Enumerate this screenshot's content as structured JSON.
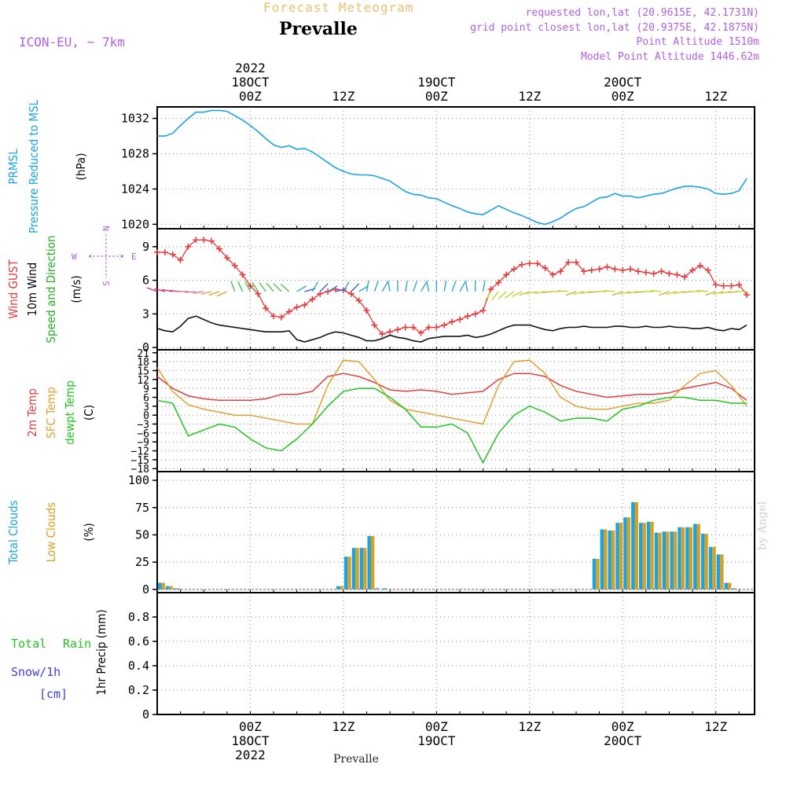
{
  "header": {
    "title": "Forecast Meteogram",
    "location": "Prevalle",
    "model": "ICON-EU, ~ 7km",
    "requested": "requested lon,lat (20.9615E, 42.1731N)",
    "grid": "grid point closest lon,lat (20.9375E, 42.1875N)",
    "point_alt": "Point Altitude 1510m",
    "model_alt": "Model Point Altitude 1446.62m",
    "credit": "by Angel",
    "footer": "Prevalle"
  },
  "time_axis": {
    "top_labels": [
      {
        "t": 12,
        "lines": [
          "2022",
          "18OCT",
          "00Z"
        ]
      },
      {
        "t": 24,
        "lines": [
          "12Z"
        ]
      },
      {
        "t": 36,
        "lines": [
          "19OCT",
          "00Z"
        ]
      },
      {
        "t": 48,
        "lines": [
          "12Z"
        ]
      },
      {
        "t": 60,
        "lines": [
          "20OCT",
          "00Z"
        ]
      },
      {
        "t": 72,
        "lines": [
          "12Z"
        ]
      }
    ],
    "bottom_labels": [
      {
        "t": 12,
        "lines": [
          "00Z",
          "18OCT",
          "2022"
        ]
      },
      {
        "t": 24,
        "lines": [
          "12Z"
        ]
      },
      {
        "t": 36,
        "lines": [
          "00Z",
          "19OCT"
        ]
      },
      {
        "t": 48,
        "lines": [
          "12Z"
        ]
      },
      {
        "t": 60,
        "lines": [
          "00Z",
          "20OCT"
        ]
      },
      {
        "t": 72,
        "lines": [
          "12Z"
        ]
      }
    ]
  },
  "panels": {
    "pressure": {
      "label_lines": [
        "PRMSL",
        "Pressure Reduced to MSL"
      ],
      "unit": "(hPa)"
    },
    "wind": {
      "label_lines": [
        "Wind GUST",
        "10m Wind",
        "Speed and Direction"
      ],
      "unit": "(m/s)",
      "compass": {
        "n": "N",
        "s": "S",
        "w": "W",
        "e": "E"
      }
    },
    "temp": {
      "label_lines": [
        "2m Temp",
        "SFC Temp",
        "dewpt Temp"
      ],
      "unit": "(C)"
    },
    "clouds": {
      "label_lines": [
        "Total Clouds",
        "Low Clouds"
      ],
      "unit": "(%)"
    },
    "precip": {
      "label_total": "Total",
      "label_rain": "Rain",
      "label_snow": "Snow/1h",
      "label_cm": "[cm]",
      "unit": "1hr Precip (mm)"
    }
  },
  "colors": {
    "pressure": "#1aa3e0",
    "gust": "#e63838",
    "wind": "#111111",
    "t2m": "#e04040",
    "tsfc": "#e0a030",
    "dewpt": "#22c422",
    "total_clouds": "#1aa3e0",
    "low_clouds": "#d8a020",
    "snow": "#4040e0",
    "model": "#b060e0"
  },
  "chart_data": [
    {
      "type": "line",
      "title": "PRMSL",
      "ylabel": "(hPa)",
      "ylim": [
        1019.5,
        1033.3
      ],
      "yticks": [
        1020,
        1024,
        1028,
        1032
      ],
      "x": [
        0,
        1,
        2,
        3,
        4,
        5,
        6,
        7,
        8,
        9,
        10,
        11,
        12,
        13,
        14,
        15,
        16,
        17,
        18,
        19,
        20,
        21,
        22,
        23,
        24,
        25,
        26,
        27,
        28,
        29,
        30,
        31,
        32,
        33,
        34,
        35,
        36,
        37,
        38,
        39,
        40,
        41,
        42,
        43,
        44,
        45,
        46,
        47,
        48,
        49,
        50,
        51,
        52,
        53,
        54,
        55,
        56,
        57,
        58,
        59,
        60,
        61,
        62,
        63,
        64,
        65,
        66,
        67,
        68,
        69,
        70,
        71,
        72,
        73,
        74,
        75,
        76
      ],
      "series": [
        {
          "values": [
            1030.0,
            1030.0,
            1030.3,
            1031.2,
            1032.0,
            1032.7,
            1032.7,
            1032.9,
            1032.9,
            1032.8,
            1032.3,
            1031.8,
            1031.2,
            1030.5,
            1029.7,
            1029.0,
            1028.7,
            1028.9,
            1028.5,
            1028.6,
            1028.2,
            1027.6,
            1027.0,
            1026.4,
            1026.0,
            1025.7,
            1025.6,
            1025.6,
            1025.5,
            1025.2,
            1024.9,
            1024.3,
            1023.7,
            1023.4,
            1023.3,
            1023.0,
            1022.9,
            1022.5,
            1022.1,
            1021.8,
            1021.4,
            1021.2,
            1021.1,
            1021.6,
            1022.1,
            1021.7,
            1021.3,
            1021.0,
            1020.6,
            1020.2,
            1020.0,
            1020.3,
            1020.7,
            1021.3,
            1021.8,
            1022.0,
            1022.5,
            1023.0,
            1023.1,
            1023.5,
            1023.2,
            1023.2,
            1023.0,
            1023.2,
            1023.4,
            1023.5,
            1023.8,
            1024.1,
            1024.3,
            1024.3,
            1024.2,
            1024.0,
            1023.5,
            1023.4,
            1023.5,
            1023.8,
            1025.2
          ]
        }
      ]
    },
    {
      "type": "line",
      "title": "Wind",
      "ylabel": "(m/s)",
      "ylim": [
        -0.2,
        10.6
      ],
      "yticks": [
        0,
        3,
        6,
        9
      ],
      "x": [
        0,
        1,
        2,
        3,
        4,
        5,
        6,
        7,
        8,
        9,
        10,
        11,
        12,
        13,
        14,
        15,
        16,
        17,
        18,
        19,
        20,
        21,
        22,
        23,
        24,
        25,
        26,
        27,
        28,
        29,
        30,
        31,
        32,
        33,
        34,
        35,
        36,
        37,
        38,
        39,
        40,
        41,
        42,
        43,
        44,
        45,
        46,
        47,
        48,
        49,
        50,
        51,
        52,
        53,
        54,
        55,
        56,
        57,
        58,
        59,
        60,
        61,
        62,
        63,
        64,
        65,
        66,
        67,
        68,
        69,
        70,
        71,
        72,
        73,
        74,
        75,
        76
      ],
      "series": [
        {
          "name": "Wind GUST",
          "values": [
            8.5,
            8.5,
            8.3,
            7.8,
            9.0,
            9.6,
            9.6,
            9.5,
            8.8,
            8.0,
            7.3,
            6.5,
            5.5,
            4.8,
            3.5,
            2.8,
            2.7,
            3.2,
            3.6,
            3.8,
            4.3,
            4.8,
            5.0,
            5.2,
            5.1,
            4.8,
            4.2,
            3.3,
            2.0,
            1.2,
            1.4,
            1.6,
            1.8,
            1.8,
            1.3,
            1.8,
            1.8,
            2.0,
            2.3,
            2.5,
            2.8,
            3.0,
            3.3,
            5.2,
            5.8,
            6.5,
            7.0,
            7.4,
            7.5,
            7.5,
            7.1,
            6.5,
            6.8,
            7.6,
            7.6,
            6.8,
            6.9,
            7.0,
            7.2,
            7.0,
            6.9,
            7.0,
            6.8,
            6.7,
            6.6,
            6.8,
            6.6,
            6.5,
            6.3,
            6.9,
            7.3,
            6.9,
            5.6,
            5.5,
            5.5,
            5.6,
            4.7
          ]
        },
        {
          "name": "10m Wind",
          "values": [
            1.7,
            1.5,
            1.4,
            1.9,
            2.6,
            2.8,
            2.5,
            2.2,
            2.0,
            1.9,
            1.8,
            1.7,
            1.6,
            1.5,
            1.4,
            1.4,
            1.4,
            1.5,
            0.7,
            0.5,
            0.7,
            0.9,
            1.2,
            1.4,
            1.3,
            1.1,
            0.9,
            0.6,
            0.6,
            0.8,
            1.1,
            0.9,
            0.8,
            0.6,
            0.5,
            0.8,
            0.9,
            1.0,
            1.0,
            1.0,
            1.1,
            0.9,
            1.0,
            1.2,
            1.5,
            1.8,
            2.0,
            2.0,
            2.0,
            1.8,
            1.6,
            1.5,
            1.7,
            1.8,
            1.8,
            1.9,
            1.8,
            1.8,
            1.8,
            1.9,
            1.9,
            1.8,
            1.8,
            1.9,
            1.8,
            1.8,
            1.9,
            1.8,
            1.8,
            1.7,
            1.7,
            1.8,
            1.6,
            1.5,
            1.7,
            1.6,
            2.0
          ]
        }
      ]
    },
    {
      "type": "line",
      "title": "Temperature",
      "ylabel": "(C)",
      "ylim": [
        -19,
        22
      ],
      "yticks": [
        -18,
        -15,
        -12,
        -9,
        -6,
        -3,
        0,
        3,
        6,
        9,
        12,
        15,
        18,
        21
      ],
      "x": [
        0,
        2,
        4,
        6,
        8,
        10,
        12,
        14,
        16,
        18,
        20,
        22,
        24,
        26,
        28,
        30,
        32,
        34,
        36,
        38,
        40,
        42,
        44,
        46,
        48,
        50,
        52,
        54,
        56,
        58,
        60,
        62,
        64,
        66,
        68,
        70,
        72,
        74,
        76
      ],
      "series": [
        {
          "name": "2m Temp",
          "values": [
            13,
            9,
            6.5,
            5.5,
            5,
            5,
            5,
            5.5,
            7,
            7,
            8,
            13,
            14,
            13,
            11,
            8.5,
            8,
            8.5,
            8,
            7,
            7.5,
            8,
            12,
            14,
            14,
            13,
            10,
            8,
            7,
            6,
            6.5,
            7,
            7,
            7.5,
            9,
            10,
            11,
            9,
            5
          ]
        },
        {
          "name": "SFC Temp",
          "values": [
            16,
            8,
            3.5,
            2,
            1,
            0,
            0,
            -1,
            -2,
            -3,
            -3,
            10,
            18.5,
            18,
            12,
            5,
            2,
            1,
            0,
            -1,
            -2,
            -3,
            10,
            18,
            18.5,
            14,
            6,
            3,
            2,
            2,
            3,
            4,
            4,
            5,
            10,
            14,
            15,
            10,
            3
          ]
        },
        {
          "name": "dewpt Temp",
          "values": [
            5,
            4,
            -7,
            -5,
            -3,
            -4,
            -8,
            -11,
            -12,
            -8,
            -3,
            3,
            8,
            9,
            9,
            6,
            2,
            -4,
            -4,
            -3,
            -6,
            -16,
            -6,
            0,
            3,
            1,
            -2,
            -1,
            -1,
            -2,
            2,
            3,
            5,
            6,
            6,
            5,
            5,
            4,
            4
          ]
        }
      ]
    },
    {
      "type": "bar",
      "title": "Clouds",
      "ylabel": "(%)",
      "ylim": [
        -3,
        108
      ],
      "yticks": [
        0,
        25,
        50,
        75,
        100
      ],
      "x": [
        0,
        1,
        2,
        23,
        24,
        25,
        26,
        27,
        28,
        29,
        56,
        57,
        58,
        59,
        60,
        61,
        62,
        63,
        64,
        65,
        66,
        67,
        68,
        69,
        70,
        71,
        72,
        73,
        74
      ],
      "series": [
        {
          "name": "Total Clouds",
          "values": [
            6,
            3,
            1,
            3,
            30,
            38,
            38,
            49,
            1,
            1,
            28,
            55,
            54,
            61,
            66,
            80,
            61,
            62,
            52,
            53,
            53,
            57,
            57,
            60,
            51,
            39,
            32,
            6,
            1
          ]
        },
        {
          "name": "Low Clouds",
          "values": [
            6,
            3,
            1,
            3,
            30,
            38,
            38,
            49,
            0,
            0,
            28,
            55,
            54,
            61,
            66,
            80,
            61,
            62,
            52,
            53,
            53,
            57,
            57,
            60,
            51,
            39,
            32,
            6,
            0
          ]
        }
      ]
    },
    {
      "type": "bar",
      "title": "Precipitation",
      "ylabel": "1hr Precip (mm)",
      "ylim": [
        0,
        1
      ],
      "yticks": [
        0,
        0.2,
        0.4,
        0.6,
        0.8
      ],
      "series": [
        {
          "name": "Total Rain",
          "values": []
        },
        {
          "name": "Snow/1h",
          "values": []
        }
      ]
    }
  ]
}
